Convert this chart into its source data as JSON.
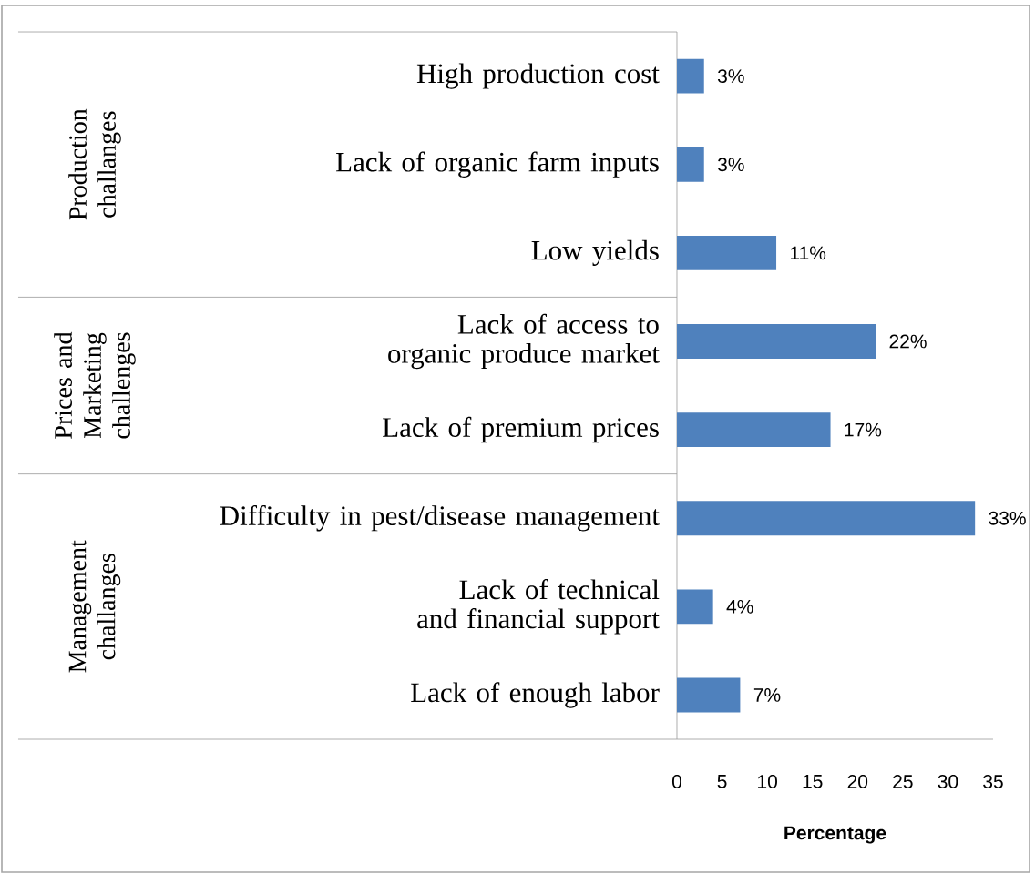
{
  "chart_data": {
    "type": "bar",
    "orientation": "horizontal",
    "categories": [
      "High production cost",
      "Lack of organic farm inputs",
      "Low yields",
      "Lack of access to organic produce market",
      "Lack of premium prices",
      "Difficulty in pest/disease management",
      "Lack of technical and financial support",
      "Lack of enough labor"
    ],
    "values": [
      3,
      3,
      11,
      22,
      17,
      33,
      4,
      7
    ],
    "value_labels": [
      "3%",
      "3%",
      "11%",
      "22%",
      "17%",
      "33%",
      "4%",
      "7%"
    ],
    "color": "#4f81bd",
    "xlim": [
      0,
      35
    ],
    "xticks": [
      0,
      5,
      10,
      15,
      20,
      25,
      30,
      35
    ],
    "xlabel": "Percentage",
    "annotations": [
      "Production challanges",
      "Prices and Marketing challenges",
      "Management challanges"
    ],
    "grid": false
  }
}
